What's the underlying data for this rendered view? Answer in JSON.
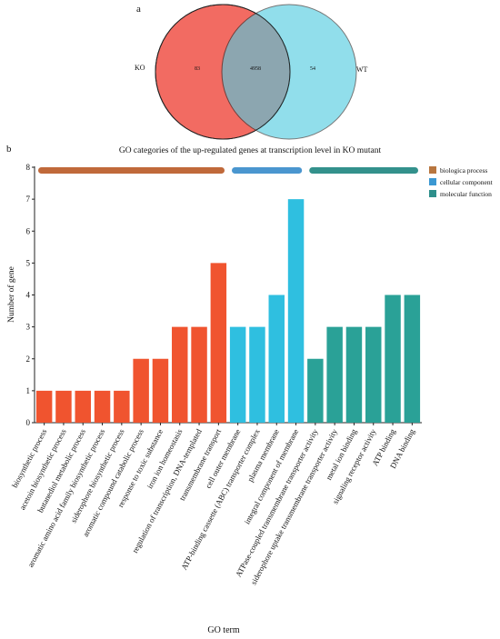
{
  "panel_a_label": "a",
  "panel_b_label": "b",
  "chart_data": [
    {
      "type": "venn",
      "sets": [
        {
          "name": "KO",
          "only": 83,
          "color": "#f2645a"
        },
        {
          "name": "WT",
          "only": 54,
          "color": "#4fcbe0"
        }
      ],
      "intersection": 4958
    },
    {
      "type": "bar",
      "title": "GO categories of the up-regulated genes at transcription level in KO mutant",
      "xlabel": "GO term",
      "ylabel": "Number of gene",
      "ylim": [
        0,
        8
      ],
      "yticks": [
        0,
        1,
        2,
        3,
        4,
        5,
        6,
        7,
        8
      ],
      "groups": [
        {
          "name": "biologica process",
          "color": "#f0542f",
          "legend_color": "#b8763f",
          "band_color": "#c0693a"
        },
        {
          "name": "cellular component",
          "color": "#2fbfe0",
          "legend_color": "#3b98d2",
          "band_color": "#4a96cf"
        },
        {
          "name": "molecular function",
          "color": "#2aa197",
          "legend_color": "#2e8f8b",
          "band_color": "#33918c"
        }
      ],
      "categories": [
        {
          "name": "biosynthetic process",
          "value": 1,
          "group": 0
        },
        {
          "name": "acetoin biosynthetic process",
          "value": 1,
          "group": 0
        },
        {
          "name": "butanediol metabolic process",
          "value": 1,
          "group": 0
        },
        {
          "name": "aromatic amino acid family biosynthetic process",
          "value": 1,
          "group": 0
        },
        {
          "name": "siderophore biosynthetic process",
          "value": 1,
          "group": 0
        },
        {
          "name": "aromatic compound catabolic process",
          "value": 2,
          "group": 0
        },
        {
          "name": "response to toxic substance",
          "value": 2,
          "group": 0
        },
        {
          "name": "iron ion homeostasis",
          "value": 3,
          "group": 0
        },
        {
          "name": "regulation of transcription, DNA-templated",
          "value": 3,
          "group": 0
        },
        {
          "name": "transmembrane transport",
          "value": 5,
          "group": 0
        },
        {
          "name": "cell outer membrane",
          "value": 3,
          "group": 1
        },
        {
          "name": "ATP-binding cassette (ABC) transporter complex",
          "value": 3,
          "group": 1
        },
        {
          "name": "plasma membrane",
          "value": 4,
          "group": 1
        },
        {
          "name": "integral component of membrane",
          "value": 7,
          "group": 1
        },
        {
          "name": "ATPase-coupled transmembrane transporter activity",
          "value": 2,
          "group": 2
        },
        {
          "name": "siderophore uptake transmembrane transporter activity",
          "value": 3,
          "group": 2
        },
        {
          "name": "metal ion binding",
          "value": 3,
          "group": 2
        },
        {
          "name": "signaling receptor activity",
          "value": 3,
          "group": 2
        },
        {
          "name": "ATP binding",
          "value": 4,
          "group": 2
        },
        {
          "name": "DNA binding",
          "value": 4,
          "group": 2
        }
      ]
    }
  ]
}
